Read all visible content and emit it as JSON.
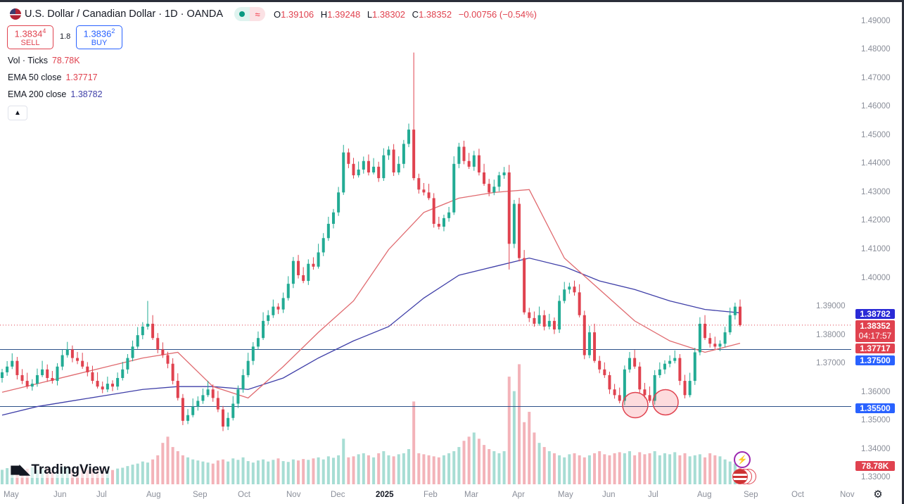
{
  "header": {
    "title": "U.S. Dollar / Canadian Dollar · 1D · OANDA",
    "ohlc": {
      "o_label": "O",
      "o": "1.39106",
      "h_label": "H",
      "h": "1.39248",
      "l_label": "L",
      "l": "1.38302",
      "c_label": "C",
      "c": "1.38352",
      "change": "−0.00756 (−0.54%)"
    },
    "approx_symbol": "≈"
  },
  "trade": {
    "sell_price": "1.3834",
    "sell_sup": "4",
    "sell_label": "SELL",
    "spread": "1.8",
    "buy_price": "1.3836",
    "buy_sup": "2",
    "buy_label": "BUY"
  },
  "legend": {
    "vol_label": "Vol · Ticks",
    "vol_value": "78.78K",
    "ema50_label": "EMA 50 close",
    "ema50_value": "1.37717",
    "ema200_label": "EMA 200 close",
    "ema200_value": "1.38782"
  },
  "logo_text": "TradingView",
  "icons": {
    "collapse": "chevron-up-icon",
    "settings": "gear-icon",
    "event": "lightning-icon",
    "economic": "us-flag-icon"
  },
  "colors": {
    "up": "#22ab94",
    "down": "#e0424f",
    "ema50": "#e06a6f",
    "ema200": "#3f3fa8",
    "level": "#2c5189",
    "tag_blue": "#2962ff",
    "tag_ema200": "#2a2ad6"
  },
  "price_tags": {
    "ema200": "1.38782",
    "last": "1.38352",
    "countdown": "04:17:57",
    "ema50": "1.37717",
    "level_high": "1.37500",
    "level_low": "1.35500",
    "volume": "78.78K"
  },
  "chart_data": {
    "type": "candlestick",
    "symbol": "USDCAD",
    "timeframe": "1D",
    "x_ticks": [
      "May",
      "Jun",
      "Jul",
      "Aug",
      "Sep",
      "Oct",
      "Nov",
      "Dec",
      "2025",
      "Feb",
      "Mar",
      "Apr",
      "May",
      "Jun",
      "Jul",
      "Aug",
      "Sep",
      "Oct",
      "Nov"
    ],
    "y_ticks": [
      "1.49000",
      "1.48000",
      "1.47000",
      "1.46000",
      "1.45000",
      "1.44000",
      "1.43000",
      "1.42000",
      "1.41000",
      "1.40000",
      "1.39000",
      "1.38000",
      "1.37000",
      "1.36000",
      "1.35000",
      "1.34000",
      "1.33000"
    ],
    "ylim": [
      1.325,
      1.4925
    ],
    "closes": [
      1.367,
      1.369,
      1.371,
      1.366,
      1.364,
      1.362,
      1.363,
      1.366,
      1.368,
      1.365,
      1.364,
      1.369,
      1.373,
      1.375,
      1.372,
      1.371,
      1.369,
      1.367,
      1.364,
      1.362,
      1.361,
      1.363,
      1.362,
      1.365,
      1.368,
      1.372,
      1.376,
      1.38,
      1.383,
      1.384,
      1.379,
      1.375,
      1.373,
      1.37,
      1.364,
      1.358,
      1.35,
      1.352,
      1.355,
      1.357,
      1.359,
      1.361,
      1.358,
      1.354,
      1.348,
      1.351,
      1.356,
      1.361,
      1.366,
      1.371,
      1.376,
      1.379,
      1.385,
      1.387,
      1.39,
      1.389,
      1.393,
      1.398,
      1.406,
      1.401,
      1.399,
      1.405,
      1.404,
      1.409,
      1.414,
      1.419,
      1.423,
      1.43,
      1.444,
      1.44,
      1.436,
      1.438,
      1.441,
      1.437,
      1.439,
      1.435,
      1.443,
      1.445,
      1.437,
      1.44,
      1.447,
      1.452,
      1.435,
      1.431,
      1.43,
      1.428,
      1.419,
      1.418,
      1.421,
      1.423,
      1.44,
      1.446,
      1.441,
      1.439,
      1.443,
      1.437,
      1.433,
      1.43,
      1.432,
      1.436,
      1.437,
      1.412,
      1.426,
      1.407,
      1.388,
      1.386,
      1.384,
      1.387,
      1.383,
      1.385,
      1.382,
      1.392,
      1.396,
      1.397,
      1.395,
      1.387,
      1.373,
      1.381,
      1.371,
      1.368,
      1.366,
      1.361,
      1.359,
      1.357,
      1.368,
      1.372,
      1.369,
      1.361,
      1.359,
      1.357,
      1.366,
      1.368,
      1.37,
      1.371,
      1.372,
      1.364,
      1.359,
      1.364,
      1.374,
      1.384,
      1.379,
      1.377,
      1.376,
      1.377,
      1.381,
      1.387,
      1.39,
      1.38352
    ],
    "wick_overrides": [
      {
        "index": 82,
        "high": 1.479
      },
      {
        "index": 101,
        "low": 1.403
      },
      {
        "index": 29,
        "high": 1.392
      },
      {
        "index": 147,
        "high": 1.39248,
        "low": 1.38302
      }
    ],
    "volume_k": [
      70,
      78,
      72,
      80,
      68,
      75,
      82,
      70,
      74,
      79,
      66,
      72,
      85,
      77,
      70,
      73,
      80,
      68,
      75,
      71,
      78,
      74,
      69,
      76,
      80,
      88,
      95,
      100,
      110,
      105,
      120,
      140,
      200,
      230,
      180,
      160,
      140,
      130,
      120,
      115,
      110,
      105,
      100,
      115,
      120,
      110,
      125,
      118,
      130,
      112,
      105,
      115,
      120,
      110,
      118,
      125,
      112,
      108,
      120,
      115,
      122,
      118,
      125,
      130,
      120,
      135,
      128,
      140,
      220,
      130,
      135,
      145,
      150,
      140,
      130,
      150,
      160,
      140,
      135,
      145,
      150,
      170,
      400,
      150,
      145,
      140,
      135,
      130,
      140,
      150,
      160,
      180,
      210,
      230,
      250,
      220,
      190,
      170,
      160,
      150,
      160,
      520,
      450,
      580,
      300,
      350,
      250,
      200,
      180,
      160,
      150,
      140,
      130,
      145,
      150,
      140,
      130,
      140,
      150,
      160,
      145,
      140,
      150,
      155,
      150,
      160,
      140,
      155,
      145,
      150,
      160,
      140,
      150,
      145,
      155,
      140,
      150,
      135,
      140,
      145,
      130,
      150,
      140,
      135,
      120,
      110,
      100,
      78.78
    ],
    "ema50": [
      1.36,
      1.363,
      1.366,
      1.369,
      1.372,
      1.374,
      1.362,
      1.358,
      1.369,
      1.381,
      1.392,
      1.41,
      1.423,
      1.428,
      1.43,
      1.431,
      1.407,
      1.396,
      1.385,
      1.378,
      1.374,
      1.37717
    ],
    "ema200": [
      1.352,
      1.355,
      1.357,
      1.359,
      1.361,
      1.362,
      1.362,
      1.361,
      1.365,
      1.372,
      1.378,
      1.383,
      1.393,
      1.401,
      1.404,
      1.407,
      1.404,
      1.399,
      1.396,
      1.392,
      1.389,
      1.38782
    ],
    "horizontal_levels": [
      1.375,
      1.355
    ],
    "last_price_line": 1.38352,
    "annotations": [
      {
        "type": "circle",
        "near": "June low",
        "price": 1.3555
      },
      {
        "type": "circle",
        "near": "July low",
        "price": 1.3565
      }
    ]
  }
}
